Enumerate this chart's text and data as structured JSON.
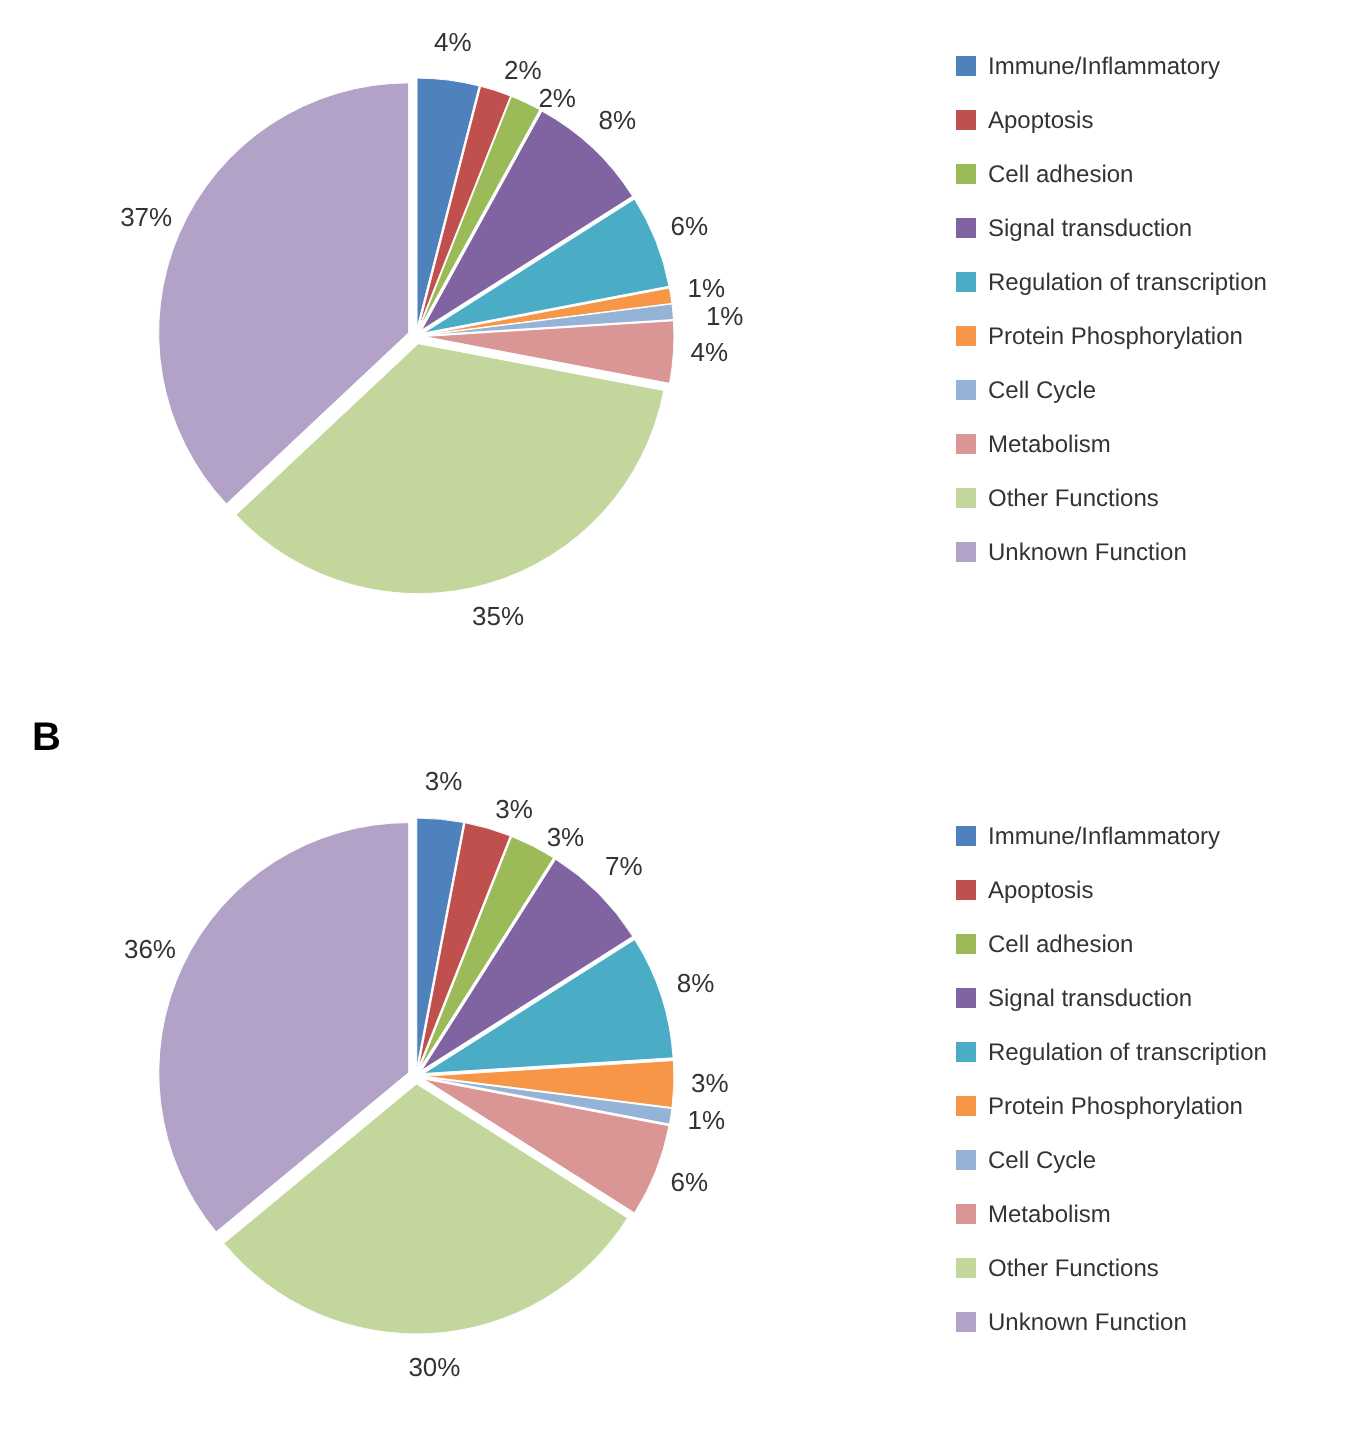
{
  "chart_data": [
    {
      "type": "pie",
      "categories": [
        "Immune/Inflammatory",
        "Apoptosis",
        "Cell adhesion",
        "Signal transduction",
        "Regulation of transcription",
        "Protein Phosphorylation",
        "Cell Cycle",
        "Metabolism",
        "Other Functions",
        "Unknown Function"
      ],
      "values": [
        4,
        2,
        2,
        8,
        6,
        1,
        1,
        4,
        35,
        37
      ],
      "value_labels": [
        "4%",
        "2%",
        "2%",
        "8%",
        "6%",
        "1%",
        "1%",
        "4%",
        "35%",
        "37%"
      ],
      "colors": [
        "#4f81bd",
        "#c0504d",
        "#9bbb59",
        "#8064a2",
        "#4bacc6",
        "#f79646",
        "#95b3d7",
        "#d99694",
        "#c3d69b",
        "#b3a2c7"
      ],
      "legend": "right"
    },
    {
      "type": "pie",
      "title": "B",
      "categories": [
        "Immune/Inflammatory",
        "Apoptosis",
        "Cell adhesion",
        "Signal transduction",
        "Regulation of transcription",
        "Protein Phosphorylation",
        "Cell Cycle",
        "Metabolism",
        "Other Functions",
        "Unknown Function"
      ],
      "values": [
        3,
        3,
        3,
        7,
        8,
        3,
        1,
        6,
        30,
        36
      ],
      "value_labels": [
        "3%",
        "3%",
        "3%",
        "7%",
        "8%",
        "3%",
        "1%",
        "6%",
        "30%",
        "36%"
      ],
      "colors": [
        "#4f81bd",
        "#c0504d",
        "#9bbb59",
        "#8064a2",
        "#4bacc6",
        "#f79646",
        "#95b3d7",
        "#d99694",
        "#c3d69b",
        "#b3a2c7"
      ],
      "legend": "right"
    }
  ]
}
